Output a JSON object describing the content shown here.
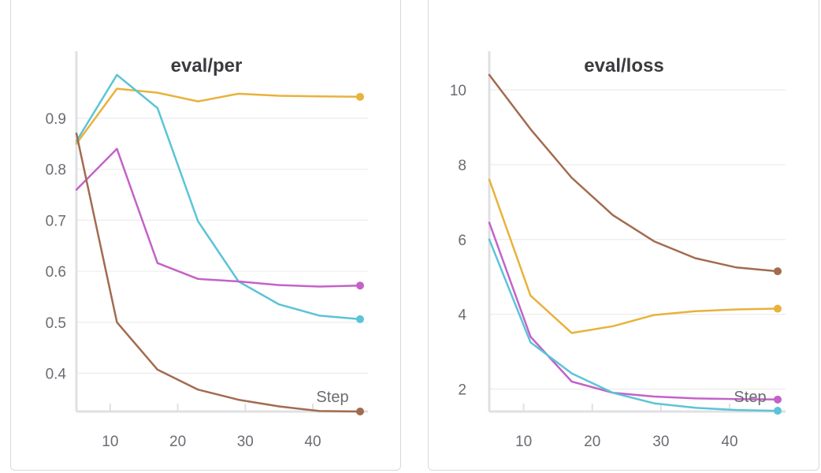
{
  "x_axis_label": "Step",
  "colors": {
    "brown": "#a26b4f",
    "gold": "#e8b23c",
    "cyan": "#5bc4d6",
    "magenta": "#c462c8"
  },
  "chart_data": [
    {
      "type": "line",
      "title": "eval/per",
      "xlabel": "Step",
      "ylabel": "",
      "xlim": [
        5,
        47
      ],
      "ylim": [
        0.325,
        0.985
      ],
      "x_ticks": [
        10,
        20,
        30,
        40
      ],
      "y_ticks": [
        0.4,
        0.5,
        0.6,
        0.7,
        0.8,
        0.9
      ],
      "grid": true,
      "x": [
        5,
        11,
        17,
        23,
        29,
        35,
        41,
        47
      ],
      "series": [
        {
          "color": "#e8b23c",
          "values": [
            0.85,
            0.958,
            0.95,
            0.933,
            0.948,
            0.944,
            0.943,
            0.942
          ]
        },
        {
          "color": "#5bc4d6",
          "values": [
            0.855,
            0.985,
            0.92,
            0.698,
            0.58,
            0.535,
            0.513,
            0.506
          ]
        },
        {
          "color": "#c462c8",
          "values": [
            0.76,
            0.84,
            0.616,
            0.585,
            0.58,
            0.573,
            0.57,
            0.572
          ]
        },
        {
          "color": "#a26b4f",
          "values": [
            0.87,
            0.5,
            0.407,
            0.368,
            0.348,
            0.335,
            0.326,
            0.325
          ]
        }
      ]
    },
    {
      "type": "line",
      "title": "eval/loss",
      "xlabel": "Step",
      "ylabel": "",
      "xlim": [
        5,
        47
      ],
      "ylim": [
        1.4,
        10.4
      ],
      "x_ticks": [
        10,
        20,
        30,
        40
      ],
      "y_ticks": [
        2,
        4,
        6,
        8,
        10
      ],
      "grid": true,
      "x": [
        5,
        11,
        17,
        23,
        29,
        35,
        41,
        47
      ],
      "series": [
        {
          "color": "#a26b4f",
          "values": [
            10.4,
            8.95,
            7.65,
            6.65,
            5.95,
            5.5,
            5.25,
            5.15
          ]
        },
        {
          "color": "#e8b23c",
          "values": [
            7.6,
            4.5,
            3.5,
            3.68,
            3.98,
            4.08,
            4.13,
            4.15
          ]
        },
        {
          "color": "#c462c8",
          "values": [
            6.45,
            3.4,
            2.2,
            1.9,
            1.8,
            1.75,
            1.73,
            1.72
          ]
        },
        {
          "color": "#5bc4d6",
          "values": [
            6.0,
            3.25,
            2.42,
            1.9,
            1.62,
            1.5,
            1.44,
            1.42
          ]
        }
      ]
    }
  ]
}
